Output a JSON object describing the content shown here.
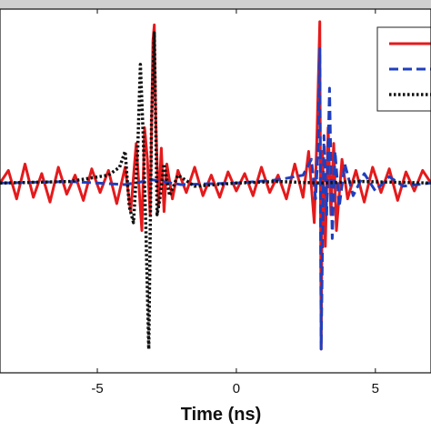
{
  "chart_data": {
    "type": "line",
    "title": "",
    "xlabel": "Time (ns)",
    "ylabel": "",
    "xlim": [
      -8.5,
      7.0
    ],
    "ylim": [
      -1.2,
      1.1
    ],
    "x_ticks": [
      -5,
      0,
      5
    ],
    "x_tick_labels": [
      "-5",
      "0",
      "5"
    ],
    "grid": false,
    "legend": {
      "placement": "top-right",
      "entries_visible_text": false
    },
    "series": [
      {
        "color": "#e41a1c",
        "dash": "solid",
        "x": [
          -8.5,
          -8.2,
          -7.9,
          -7.6,
          -7.3,
          -7.0,
          -6.7,
          -6.4,
          -6.1,
          -5.8,
          -5.5,
          -5.2,
          -4.9,
          -4.6,
          -4.3,
          -4.0,
          -3.8,
          -3.6,
          -3.4,
          -3.3,
          -3.2,
          -3.1,
          -3.0,
          -2.95,
          -2.9,
          -2.8,
          -2.7,
          -2.6,
          -2.5,
          -2.3,
          -2.1,
          -1.8,
          -1.5,
          -1.2,
          -0.9,
          -0.6,
          -0.3,
          0.0,
          0.3,
          0.6,
          0.9,
          1.2,
          1.5,
          1.8,
          2.1,
          2.4,
          2.6,
          2.8,
          2.9,
          3.0,
          3.05,
          3.1,
          3.2,
          3.3,
          3.4,
          3.5,
          3.6,
          3.8,
          4.0,
          4.3,
          4.6,
          4.9,
          5.2,
          5.5,
          5.8,
          6.1,
          6.4,
          6.7,
          7.0
        ],
        "y": [
          0.0,
          0.08,
          -0.1,
          0.12,
          -0.09,
          0.06,
          -0.12,
          0.1,
          -0.07,
          0.05,
          -0.11,
          0.09,
          -0.06,
          0.08,
          -0.13,
          0.1,
          -0.18,
          0.25,
          -0.3,
          0.35,
          0.15,
          -0.2,
          0.9,
          1.0,
          0.4,
          -0.15,
          0.22,
          -0.18,
          0.12,
          -0.1,
          0.08,
          -0.06,
          0.1,
          -0.08,
          0.05,
          -0.09,
          0.07,
          -0.05,
          0.06,
          -0.08,
          0.1,
          -0.06,
          0.05,
          -0.1,
          0.12,
          -0.09,
          0.2,
          -0.25,
          0.3,
          1.02,
          -1.05,
          0.2,
          -0.4,
          0.35,
          -0.2,
          0.25,
          -0.3,
          0.15,
          -0.1,
          0.08,
          -0.12,
          0.1,
          -0.06,
          0.09,
          -0.11,
          0.07,
          -0.05,
          0.08,
          0.0
        ]
      },
      {
        "color": "#1f3fbf",
        "dash": "dashed",
        "x": [
          -8.5,
          -6.0,
          -4.0,
          -3.0,
          -2.0,
          0.0,
          1.5,
          2.4,
          2.7,
          2.85,
          2.95,
          3.0,
          3.05,
          3.15,
          3.25,
          3.35,
          3.45,
          3.55,
          3.7,
          3.9,
          4.2,
          4.6,
          5.0,
          5.5,
          6.0,
          7.0
        ],
        "y": [
          0.0,
          0.01,
          -0.01,
          0.02,
          -0.01,
          0.0,
          0.02,
          0.05,
          0.15,
          -0.1,
          0.25,
          0.85,
          -1.05,
          0.3,
          -0.2,
          0.6,
          -0.35,
          0.2,
          -0.15,
          0.12,
          -0.08,
          0.06,
          -0.05,
          0.04,
          -0.02,
          0.0
        ]
      },
      {
        "color": "#111111",
        "dash": "dotted",
        "x": [
          -8.5,
          -6.0,
          -4.6,
          -4.2,
          -4.0,
          -3.85,
          -3.7,
          -3.55,
          -3.45,
          -3.35,
          -3.25,
          -3.15,
          -3.05,
          -2.95,
          -2.85,
          -2.75,
          -2.6,
          -2.4,
          -2.1,
          -1.5,
          0.0,
          1.5,
          3.0,
          4.5,
          7.0
        ],
        "y": [
          0.0,
          0.01,
          0.05,
          0.1,
          0.2,
          -0.15,
          -0.25,
          0.2,
          0.75,
          0.3,
          -0.3,
          -1.05,
          0.4,
          0.95,
          -0.2,
          -0.1,
          0.12,
          -0.08,
          0.05,
          -0.02,
          0.0,
          0.01,
          0.0,
          0.01,
          0.0
        ]
      }
    ]
  }
}
